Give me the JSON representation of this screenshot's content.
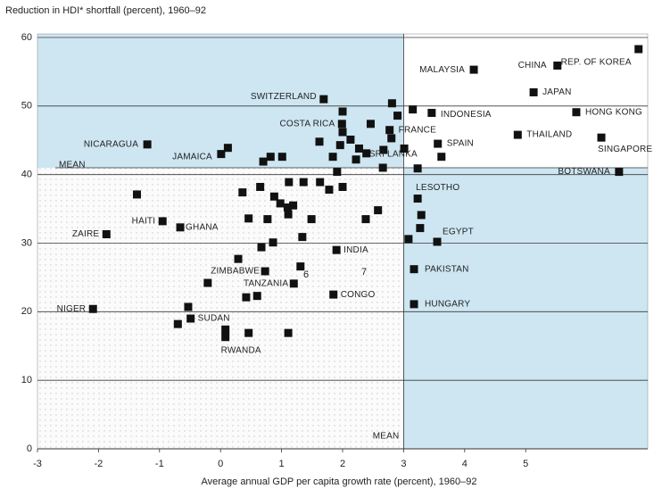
{
  "chart_data": {
    "type": "scatter",
    "title": "Reduction in HDI* shortfall (percent), 1960–92",
    "x_label": "Average annual GDP per capita growth rate (percent), 1960–92",
    "xlim": [
      -3,
      7
    ],
    "ylim": [
      0,
      60
    ],
    "xticks": [
      -3,
      -2,
      -1,
      0,
      1,
      2,
      3,
      4,
      5
    ],
    "yticks": [
      0,
      10,
      20,
      30,
      40,
      50,
      60
    ],
    "grid": true,
    "color": "#111111",
    "shade_color": "#cde6f2",
    "mean_x": 3,
    "mean_y": 41,
    "mean_label": "MEAN",
    "annotations": [
      "6",
      "7"
    ],
    "x": [
      6.85,
      5.52,
      4.15,
      5.13,
      5.83,
      3.46,
      4.87,
      6.24,
      6.53,
      1.69,
      1.99,
      2.77,
      3.56,
      2.67,
      -1.2,
      0.01,
      3.23,
      3.55,
      1.9,
      3.17,
      3.17,
      1.85,
      0.73,
      1.2,
      -2.09,
      -0.49,
      0.08,
      -1.87,
      -0.95,
      -0.66,
      0.12,
      0.7,
      0.82,
      1.01,
      1.62,
      1.84,
      1.96,
      2.0,
      2.0,
      2.13,
      2.22,
      2.27,
      2.39,
      2.46,
      2.81,
      2.9,
      3.15,
      2.8,
      3.01,
      2.66,
      3.23,
      3.62,
      1.91,
      -1.37,
      0.36,
      0.65,
      1.12,
      1.36,
      1.63,
      1.78,
      2.0,
      0.88,
      0.98,
      1.1,
      1.19,
      1.11,
      1.49,
      0.46,
      0.77,
      1.34,
      0.67,
      0.86,
      0.29,
      2.38,
      2.58,
      3.29,
      3.08,
      3.27,
      1.31,
      -0.21,
      0.42,
      0.6,
      -0.53,
      -0.7,
      0.08,
      0.46,
      1.11
    ],
    "values": [
      58.3,
      55.9,
      55.3,
      52.0,
      49.1,
      49.0,
      45.8,
      45.4,
      40.4,
      51.0,
      47.4,
      46.5,
      44.5,
      43.6,
      44.4,
      43.0,
      36.5,
      30.2,
      29.0,
      26.2,
      21.1,
      22.5,
      25.9,
      24.1,
      20.4,
      19.0,
      16.3,
      31.3,
      33.2,
      32.3,
      43.9,
      41.9,
      42.6,
      42.6,
      44.8,
      42.6,
      44.3,
      49.2,
      46.2,
      45.1,
      42.2,
      43.8,
      43.1,
      47.4,
      50.4,
      48.6,
      49.5,
      45.3,
      43.8,
      41.0,
      40.9,
      42.6,
      40.4,
      37.1,
      37.4,
      38.2,
      38.9,
      38.9,
      38.9,
      37.8,
      38.2,
      36.8,
      35.8,
      35.2,
      35.5,
      34.2,
      33.5,
      33.6,
      33.5,
      30.9,
      29.4,
      30.1,
      27.7,
      33.5,
      34.8,
      34.1,
      30.6,
      32.2,
      26.6,
      24.2,
      22.1,
      22.3,
      20.7,
      18.2,
      17.4,
      16.9,
      16.9
    ],
    "labels": [
      "REP. OF KOREA",
      "CHINA",
      "MALAYSIA",
      "JAPAN",
      "HONG KONG",
      "INDONESIA",
      "THAILAND",
      "SINGAPORE",
      "BOTSWANA",
      "SWITZERLAND",
      "COSTA RICA",
      "FRANCE",
      "SPAIN",
      "SRI LANKA",
      "NICARAGUA",
      "JAMAICA",
      "LESOTHO",
      "EGYPT",
      "INDIA",
      "PAKISTAN",
      "HUNGARY",
      "CONGO",
      "ZIMBABWE",
      "TANZANIA",
      "NIGER",
      "SUDAN",
      "RWANDA",
      "ZAIRE",
      "HAITI",
      "GHANA",
      null,
      null,
      null,
      null,
      null,
      null,
      null,
      null,
      null,
      null,
      null,
      null,
      null,
      null,
      null,
      null,
      null,
      null,
      null,
      null,
      null,
      null,
      null,
      null,
      null,
      null,
      null,
      null,
      null,
      null,
      null,
      null,
      null,
      null,
      null,
      null,
      null,
      null,
      null,
      null,
      null,
      null,
      null,
      null,
      null,
      null,
      null,
      null,
      null,
      null,
      null,
      null,
      null,
      null,
      null,
      null,
      null
    ]
  }
}
